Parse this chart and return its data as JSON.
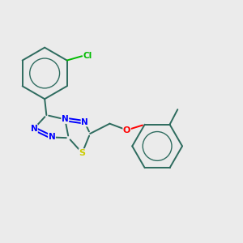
{
  "bg_color": "#EBEBEB",
  "bond_color": "#2D6B5E",
  "atom_colors": {
    "N": "#0000FF",
    "S": "#CCCC00",
    "O": "#FF0000",
    "Cl": "#00BB00",
    "C": "#2D6B5E"
  },
  "bond_width": 1.4,
  "figsize": [
    3.0,
    3.0
  ],
  "dpi": 100
}
